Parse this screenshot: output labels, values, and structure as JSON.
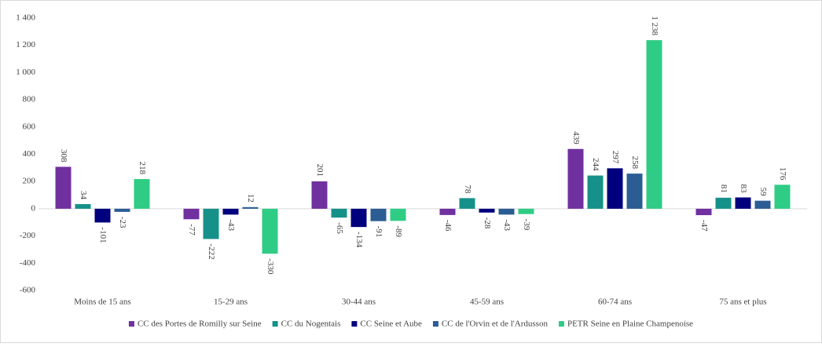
{
  "chart_data": {
    "type": "bar",
    "categories": [
      "Moins de 15 ans",
      "15-29 ans",
      "30-44 ans",
      "45-59 ans",
      "60-74 ans",
      "75 ans et plus"
    ],
    "series": [
      {
        "name": "CC des Portes de Romilly sur Seine",
        "color": "#7030a0",
        "values": [
          308,
          -77,
          201,
          -46,
          439,
          -47
        ]
      },
      {
        "name": "CC du Nogentais",
        "color": "#16918a",
        "values": [
          34,
          -222,
          -65,
          78,
          244,
          81
        ]
      },
      {
        "name": "CC Seine et Aube",
        "color": "#00007f",
        "values": [
          -101,
          -43,
          -134,
          -28,
          297,
          83
        ]
      },
      {
        "name": "CC de l'Orvin et de l'Ardusson",
        "color": "#2b5d94",
        "values": [
          -23,
          12,
          -91,
          -43,
          258,
          59
        ]
      },
      {
        "name": "PETR Seine en Plaine Champenoise",
        "color": "#2fcc85",
        "values": [
          218,
          -330,
          -89,
          -39,
          1238,
          176
        ],
        "value_labels": [
          "218",
          "-330",
          "-89",
          "-39",
          "1 238",
          "176"
        ]
      }
    ],
    "ylim": [
      -600,
      1400
    ],
    "yticks": [
      -600,
      -400,
      -200,
      0,
      200,
      400,
      600,
      800,
      {
        "value": 1000,
        "label": "1 000"
      },
      {
        "value": 1200,
        "label": "1 200"
      },
      {
        "value": 1400,
        "label": "1 400"
      }
    ],
    "legend": "bottom"
  }
}
